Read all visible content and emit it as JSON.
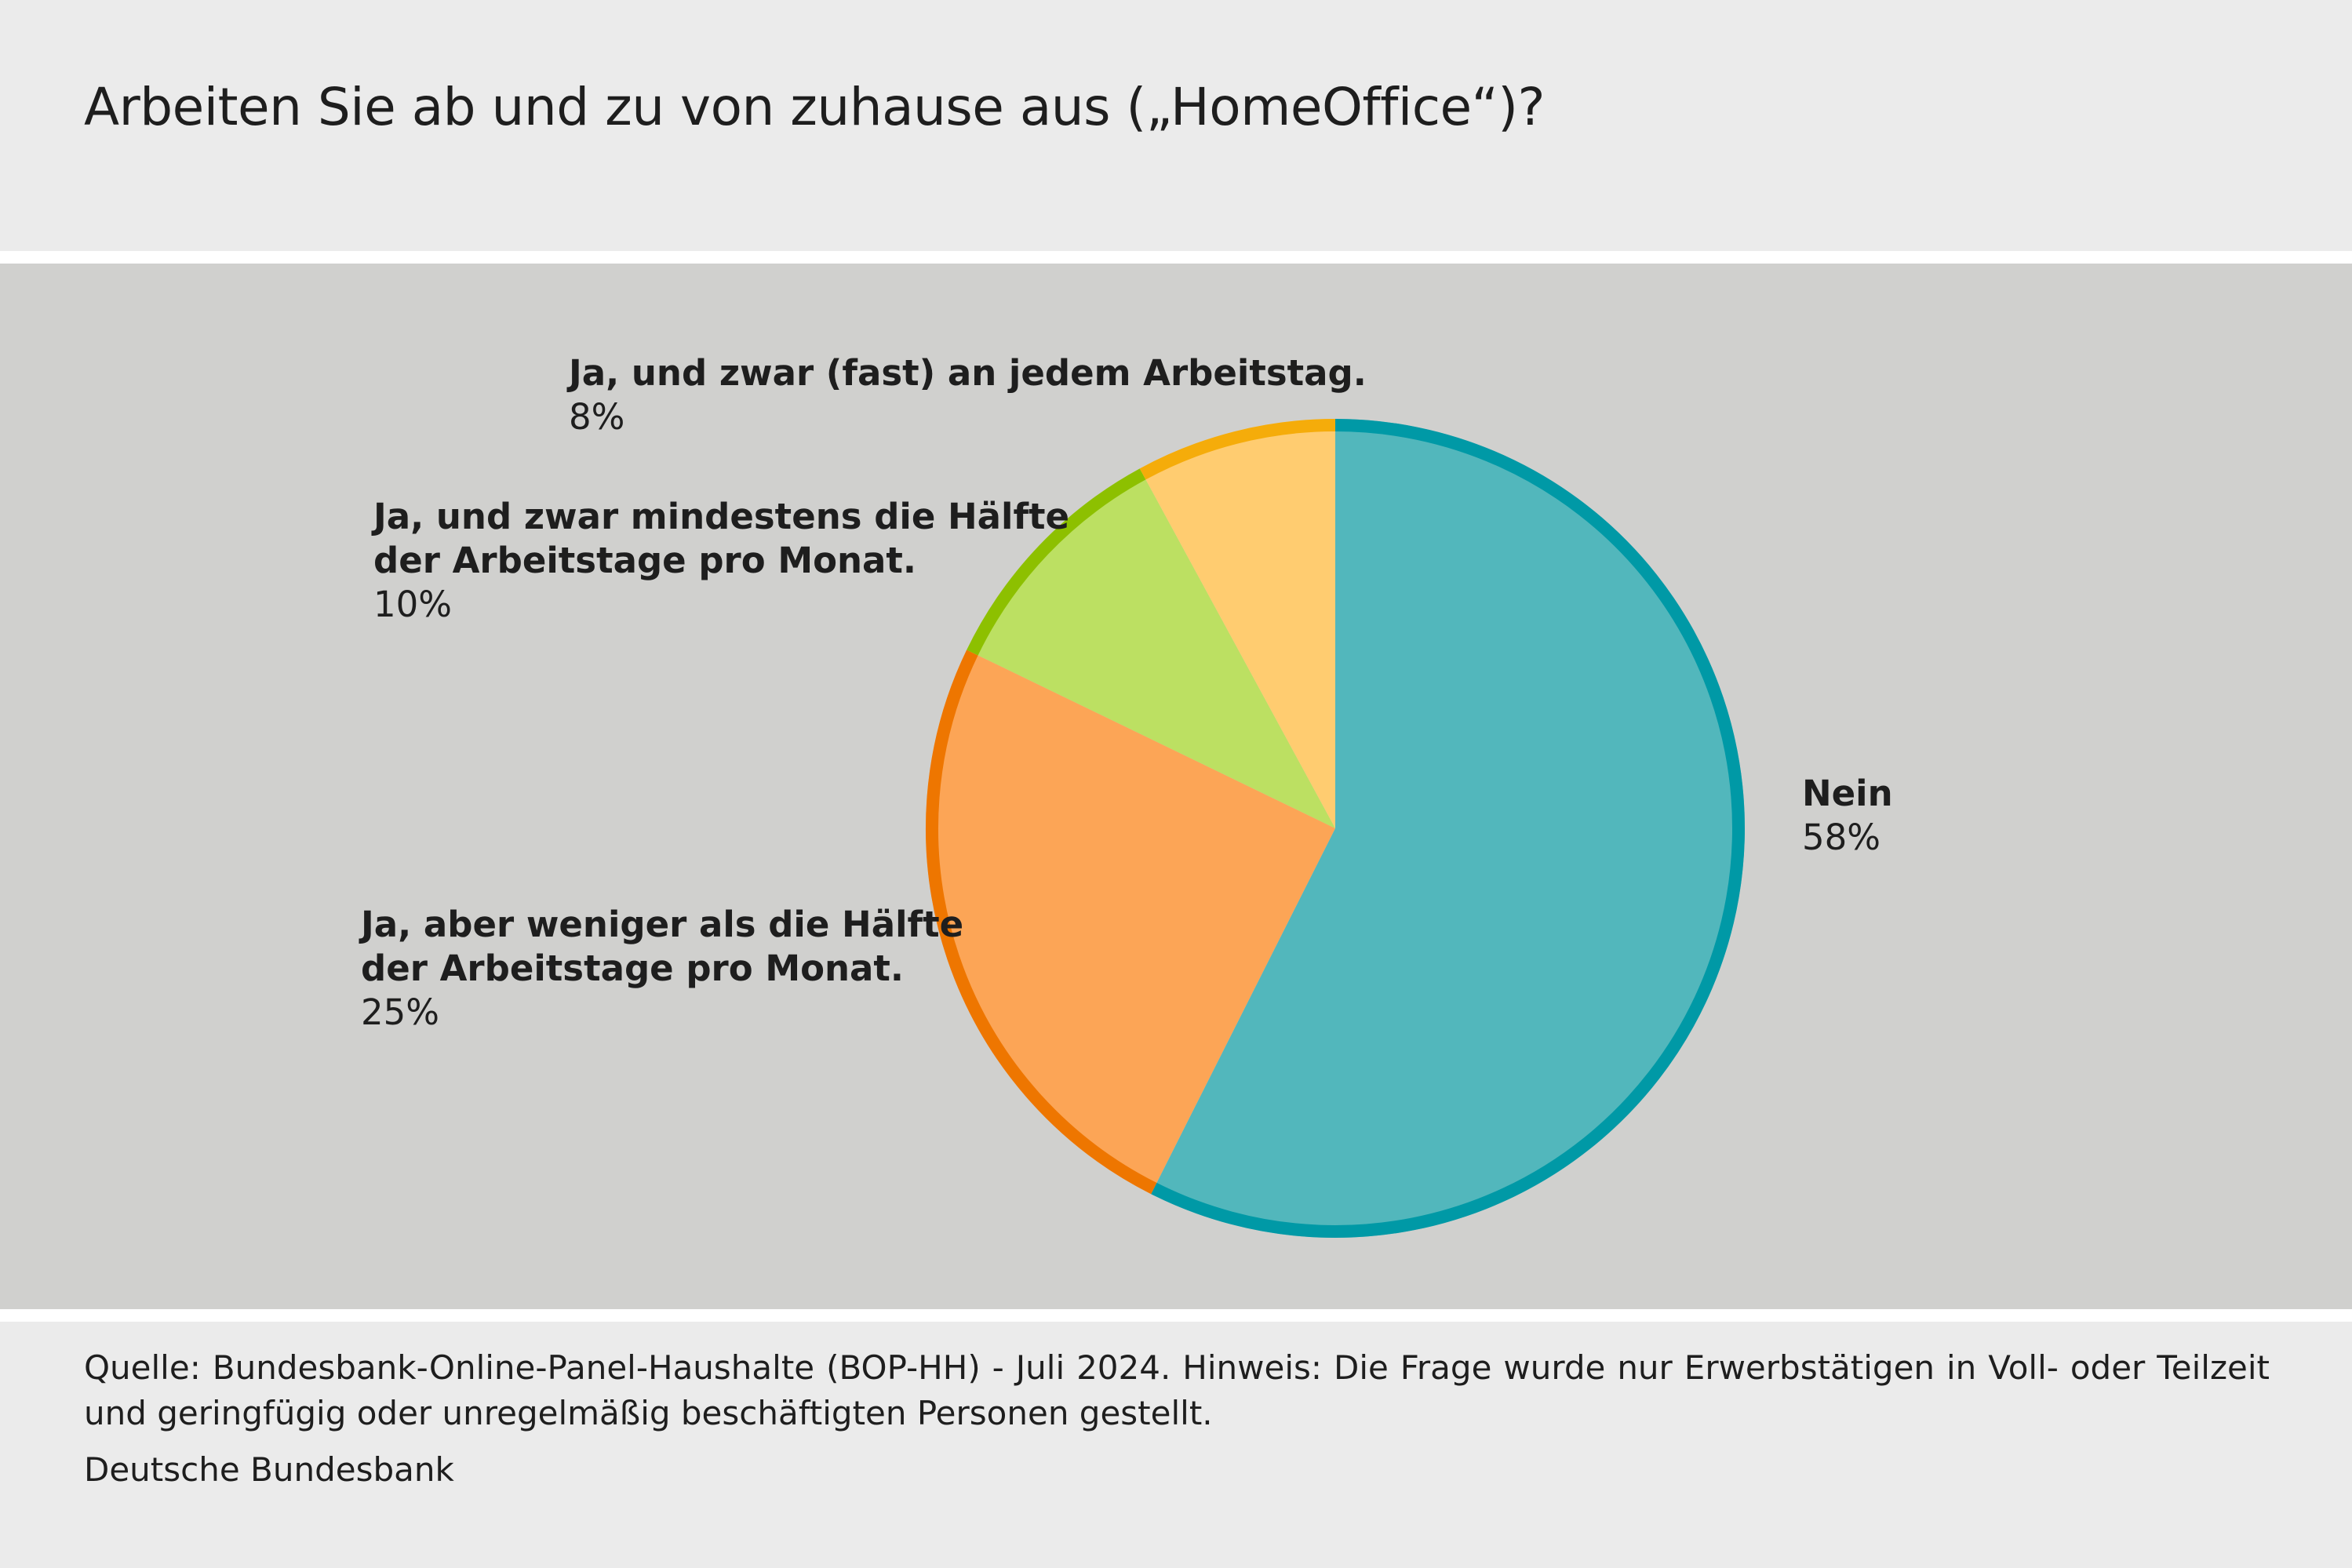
{
  "title": "Arbeiten Sie ab und zu von zuhause aus („HomeOffice“)?",
  "chart_data": {
    "type": "pie",
    "title": "Arbeiten Sie ab und zu von zuhause aus („HomeOffice“)?",
    "slices": [
      {
        "label": "Nein",
        "value": 58,
        "value_label": "58%",
        "fill": "#52b7bc",
        "edge": "#0099a6"
      },
      {
        "label": "Ja, aber weniger als die Hälfte der Arbeitstage pro Monat.",
        "label_lines": [
          "Ja, aber weniger als die Hälfte",
          "der Arbeitstage pro Monat."
        ],
        "value": 25,
        "value_label": "25%",
        "fill": "#fca556",
        "edge": "#ee7600"
      },
      {
        "label": "Ja, und zwar mindestens die Hälfte der Arbeitstage pro Monat.",
        "label_lines": [
          "Ja, und zwar mindestens die Hälfte",
          "der Arbeitstage pro Monat."
        ],
        "value": 10,
        "value_label": "10%",
        "fill": "#bce062",
        "edge": "#8dc000"
      },
      {
        "label": "Ja, und zwar (fast) an jedem Arbeitstag.",
        "label_lines": [
          "Ja, und zwar (fast) an jedem Arbeitstag."
        ],
        "value": 8,
        "value_label": "8%",
        "fill": "#ffcc70",
        "edge": "#f5ac0a"
      }
    ],
    "start_angle": "12 o'clock",
    "direction": "clockwise",
    "unit": "%"
  },
  "footer": {
    "source": "Quelle: Bundesbank-Online-Panel-Haushalte (BOP-HH) - Juli 2024. Hinweis: Die Frage wurde nur Erwerbstätigen in Voll- oder Teilzeit und geringfügig oder unregelmäßig beschäftigten Personen gestellt.",
    "publisher": "Deutsche Bundesbank"
  }
}
